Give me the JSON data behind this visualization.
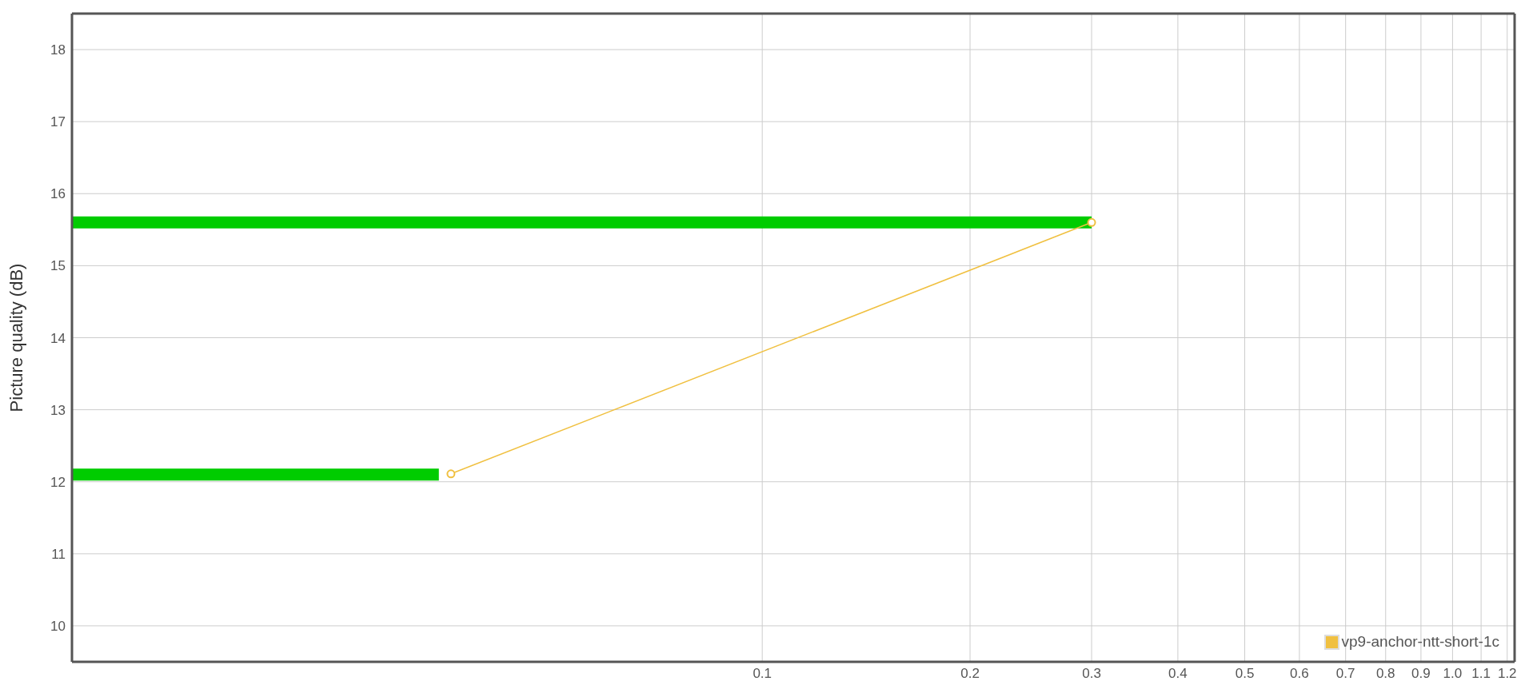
{
  "chart_data": {
    "type": "line",
    "ylabel": "Picture quality (dB)",
    "log": "x",
    "xlim": [
      0.01,
      1.23
    ],
    "xticks": [
      0.1,
      0.2,
      0.3,
      0.4,
      0.5,
      0.6,
      0.7,
      0.8,
      0.9,
      {
        "value": 1,
        "label": "1.0"
      },
      1.1,
      1.2
    ],
    "ylim": [
      9.5,
      18.5
    ],
    "yticks": [
      10,
      11,
      12,
      13,
      14,
      15,
      16,
      17,
      18
    ],
    "grid": true,
    "legend": "bottom right",
    "series": [
      {
        "color": "#00cc00",
        "x": [
          0.01,
          0.034
        ],
        "values": [
          12.1,
          12.1
        ],
        "marker": "none"
      },
      {
        "color": "#00cc00",
        "x": [
          0.01,
          0.3
        ],
        "values": [
          15.6,
          15.6
        ],
        "marker": "none"
      },
      {
        "name": "vp9-anchor-ntt-short-1c",
        "color": "#f0c040",
        "x": [
          0.0354,
          0.3
        ],
        "values": [
          12.11,
          15.6
        ],
        "marker": "circle"
      }
    ]
  }
}
